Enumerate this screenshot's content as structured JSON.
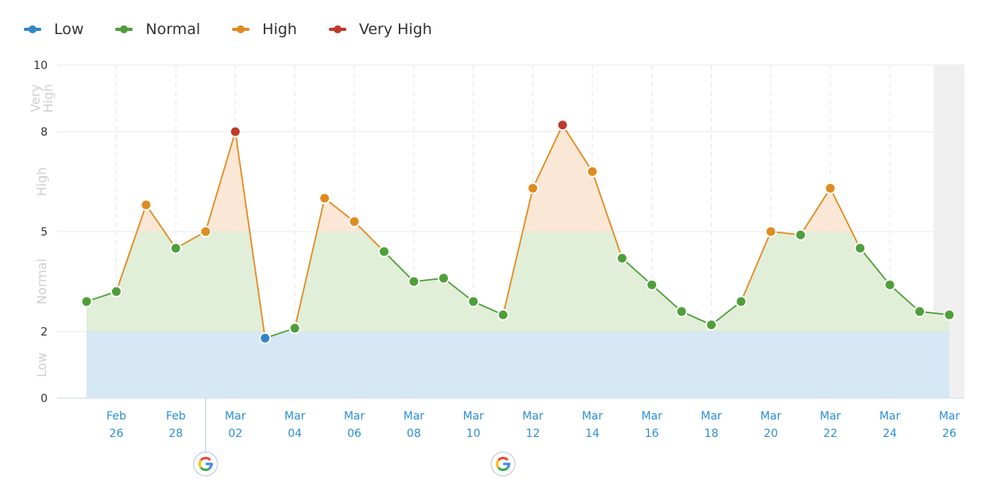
{
  "legend": [
    {
      "label": "Low",
      "color": "#2e86c9"
    },
    {
      "label": "Normal",
      "color": "#4e9f3a"
    },
    {
      "label": "High",
      "color": "#e08b20"
    },
    {
      "label": "Very High",
      "color": "#c0392b"
    }
  ],
  "chart_data": {
    "type": "area",
    "y_ticks": [
      0,
      2,
      5,
      8,
      10
    ],
    "ylim": [
      0,
      10
    ],
    "zones": [
      {
        "label": "Low",
        "from": 0,
        "to": 2,
        "fill": "#d4e6f4"
      },
      {
        "label": "Normal",
        "from": 2,
        "to": 5,
        "fill": "#dfedd6"
      },
      {
        "label": "High",
        "from": 5,
        "to": 8,
        "fill": "#fbe6d3"
      },
      {
        "label": "Very High",
        "from": 8,
        "to": 10,
        "fill": "#f6d5d0"
      }
    ],
    "x_tick_labels": [
      {
        "date": "Feb 26",
        "month": "Feb",
        "day": "26"
      },
      {
        "date": "Feb 28",
        "month": "Feb",
        "day": "28"
      },
      {
        "date": "Mar 02",
        "month": "Mar",
        "day": "02"
      },
      {
        "date": "Mar 04",
        "month": "Mar",
        "day": "04"
      },
      {
        "date": "Mar 06",
        "month": "Mar",
        "day": "06"
      },
      {
        "date": "Mar 08",
        "month": "Mar",
        "day": "08"
      },
      {
        "date": "Mar 10",
        "month": "Mar",
        "day": "10"
      },
      {
        "date": "Mar 12",
        "month": "Mar",
        "day": "12"
      },
      {
        "date": "Mar 14",
        "month": "Mar",
        "day": "14"
      },
      {
        "date": "Mar 16",
        "month": "Mar",
        "day": "16"
      },
      {
        "date": "Mar 18",
        "month": "Mar",
        "day": "18"
      },
      {
        "date": "Mar 20",
        "month": "Mar",
        "day": "20"
      },
      {
        "date": "Mar 22",
        "month": "Mar",
        "day": "22"
      },
      {
        "date": "Mar 24",
        "month": "Mar",
        "day": "24"
      },
      {
        "date": "Mar 26",
        "month": "Mar",
        "day": "26"
      }
    ],
    "points": [
      {
        "date": "Feb 25",
        "value": 2.9
      },
      {
        "date": "Feb 26",
        "value": 3.2
      },
      {
        "date": "Feb 27",
        "value": 5.8
      },
      {
        "date": "Feb 28",
        "value": 4.5
      },
      {
        "date": "Mar 01",
        "value": 5.0
      },
      {
        "date": "Mar 02",
        "value": 8.0
      },
      {
        "date": "Mar 03",
        "value": 1.8
      },
      {
        "date": "Mar 04",
        "value": 2.1
      },
      {
        "date": "Mar 05",
        "value": 6.0
      },
      {
        "date": "Mar 06",
        "value": 5.3
      },
      {
        "date": "Mar 07",
        "value": 4.4
      },
      {
        "date": "Mar 08",
        "value": 3.5
      },
      {
        "date": "Mar 09",
        "value": 3.6
      },
      {
        "date": "Mar 10",
        "value": 2.9
      },
      {
        "date": "Mar 11",
        "value": 2.5
      },
      {
        "date": "Mar 12",
        "value": 6.3
      },
      {
        "date": "Mar 13",
        "value": 8.2
      },
      {
        "date": "Mar 14",
        "value": 6.8
      },
      {
        "date": "Mar 15",
        "value": 4.2
      },
      {
        "date": "Mar 16",
        "value": 3.4
      },
      {
        "date": "Mar 17",
        "value": 2.6
      },
      {
        "date": "Mar 18",
        "value": 2.2
      },
      {
        "date": "Mar 19",
        "value": 2.9
      },
      {
        "date": "Mar 20",
        "value": 5.0
      },
      {
        "date": "Mar 21",
        "value": 4.9
      },
      {
        "date": "Mar 22",
        "value": 6.3
      },
      {
        "date": "Mar 23",
        "value": 4.5
      },
      {
        "date": "Mar 24",
        "value": 3.4
      },
      {
        "date": "Mar 25",
        "value": 2.6
      },
      {
        "date": "Mar 26",
        "value": 2.5
      }
    ],
    "annotations": [
      {
        "date": "Mar 01",
        "icon": "google-icon"
      },
      {
        "date": "Mar 11",
        "icon": "google-icon"
      }
    ],
    "grid": true
  }
}
